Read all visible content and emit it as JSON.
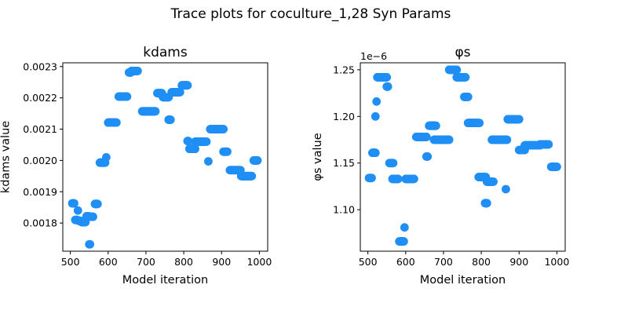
{
  "figure": {
    "suptitle": "Trace plots for coculture_1,28 Syn Params",
    "marker_color": "#1f8ff5"
  },
  "chart_data": [
    {
      "type": "scatter",
      "title": "kdams",
      "xlabel": "Model iteration",
      "ylabel": "kdams value",
      "xlim": [
        480,
        1022
      ],
      "ylim": [
        0.00171,
        0.002312
      ],
      "xticks": [
        500,
        600,
        700,
        800,
        900,
        1000
      ],
      "xtick_labels": [
        "500",
        "600",
        "700",
        "800",
        "900",
        "1000"
      ],
      "yticks": [
        0.0018,
        0.0019,
        0.002,
        0.0021,
        0.0022,
        0.0023
      ],
      "ytick_labels": [
        "0.0018",
        "0.0019",
        "0.0020",
        "0.0021",
        "0.0022",
        "0.0023"
      ],
      "offset_text": "",
      "grid": false,
      "runs": [
        [
          505,
          510,
          0.001863
        ],
        [
          513,
          518,
          0.00181
        ],
        [
          520,
          520,
          0.00184
        ],
        [
          522,
          527,
          0.001807
        ],
        [
          530,
          540,
          0.001803
        ],
        [
          543,
          548,
          0.001822
        ],
        [
          550,
          552,
          0.001732
        ],
        [
          555,
          560,
          0.00182
        ],
        [
          565,
          572,
          0.001861
        ],
        [
          578,
          592,
          0.001993
        ],
        [
          595,
          595,
          0.00201
        ],
        [
          600,
          622,
          0.002121
        ],
        [
          628,
          650,
          0.002204
        ],
        [
          655,
          660,
          0.002281
        ],
        [
          662,
          678,
          0.002286
        ],
        [
          690,
          725,
          0.002157
        ],
        [
          730,
          742,
          0.002215
        ],
        [
          745,
          760,
          0.002202
        ],
        [
          760,
          765,
          0.00213
        ],
        [
          768,
          790,
          0.002218
        ],
        [
          795,
          810,
          0.00224
        ],
        [
          810,
          812,
          0.002062
        ],
        [
          815,
          830,
          0.002037
        ],
        [
          830,
          860,
          0.00206
        ],
        [
          865,
          865,
          0.001997
        ],
        [
          870,
          905,
          0.0021
        ],
        [
          905,
          915,
          0.002028
        ],
        [
          922,
          950,
          0.001969
        ],
        [
          952,
          980,
          0.00195
        ],
        [
          985,
          995,
          0.002
        ]
      ]
    },
    {
      "type": "scatter",
      "title": "φs",
      "xlabel": "Model iteration",
      "ylabel": "φs value",
      "xlim": [
        480,
        1022
      ],
      "ylim": [
        1.0555e-06,
        1.2575e-06
      ],
      "xticks": [
        500,
        600,
        700,
        800,
        900,
        1000
      ],
      "xtick_labels": [
        "500",
        "600",
        "700",
        "800",
        "900",
        "1000"
      ],
      "yticks": [
        1.1e-06,
        1.15e-06,
        1.2e-06,
        1.25e-06
      ],
      "ytick_labels": [
        "1.10",
        "1.15",
        "1.20",
        "1.25"
      ],
      "offset_text": "1e−6",
      "grid": false,
      "runs": [
        [
          503,
          510,
          1.134e-06
        ],
        [
          512,
          520,
          1.161e-06
        ],
        [
          520,
          520,
          1.2e-06
        ],
        [
          523,
          523,
          1.216e-06
        ],
        [
          525,
          550,
          1.242e-06
        ],
        [
          550,
          553,
          1.232e-06
        ],
        [
          557,
          567,
          1.15e-06
        ],
        [
          565,
          580,
          1.133e-06
        ],
        [
          583,
          595,
          1.066e-06
        ],
        [
          597,
          597,
          1.081e-06
        ],
        [
          600,
          622,
          1.133e-06
        ],
        [
          628,
          655,
          1.178e-06
        ],
        [
          655,
          658,
          1.157e-06
        ],
        [
          662,
          680,
          1.19e-06
        ],
        [
          675,
          715,
          1.175e-06
        ],
        [
          715,
          735,
          1.25e-06
        ],
        [
          735,
          758,
          1.242e-06
        ],
        [
          755,
          765,
          1.221e-06
        ],
        [
          765,
          795,
          1.193e-06
        ],
        [
          793,
          812,
          1.135e-06
        ],
        [
          810,
          815,
          1.107e-06
        ],
        [
          815,
          832,
          1.13e-06
        ],
        [
          828,
          868,
          1.175e-06
        ],
        [
          865,
          865,
          1.122e-06
        ],
        [
          870,
          900,
          1.197e-06
        ],
        [
          900,
          915,
          1.164e-06
        ],
        [
          915,
          955,
          1.169e-06
        ],
        [
          955,
          978,
          1.17e-06
        ],
        [
          985,
          1000,
          1.146e-06
        ]
      ]
    }
  ]
}
